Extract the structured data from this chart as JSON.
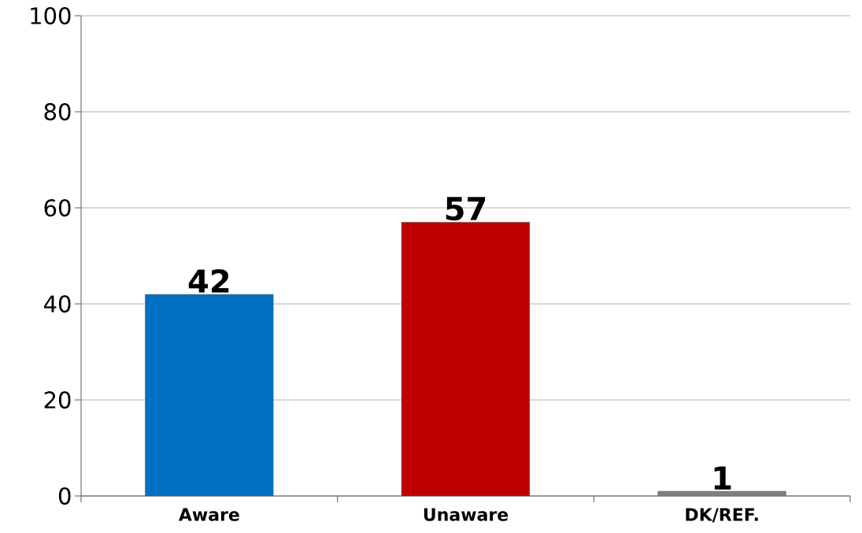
{
  "chart_data": {
    "type": "bar",
    "categories": [
      "Aware",
      "Unaware",
      "DK/REF."
    ],
    "values": [
      42,
      57,
      1
    ],
    "colors": [
      "#0070c0",
      "#c00000",
      "#808080"
    ],
    "ylim": [
      0,
      100
    ],
    "yticks": [
      0,
      20,
      40,
      60,
      80,
      100
    ],
    "grid": "y",
    "data_labels": true
  }
}
